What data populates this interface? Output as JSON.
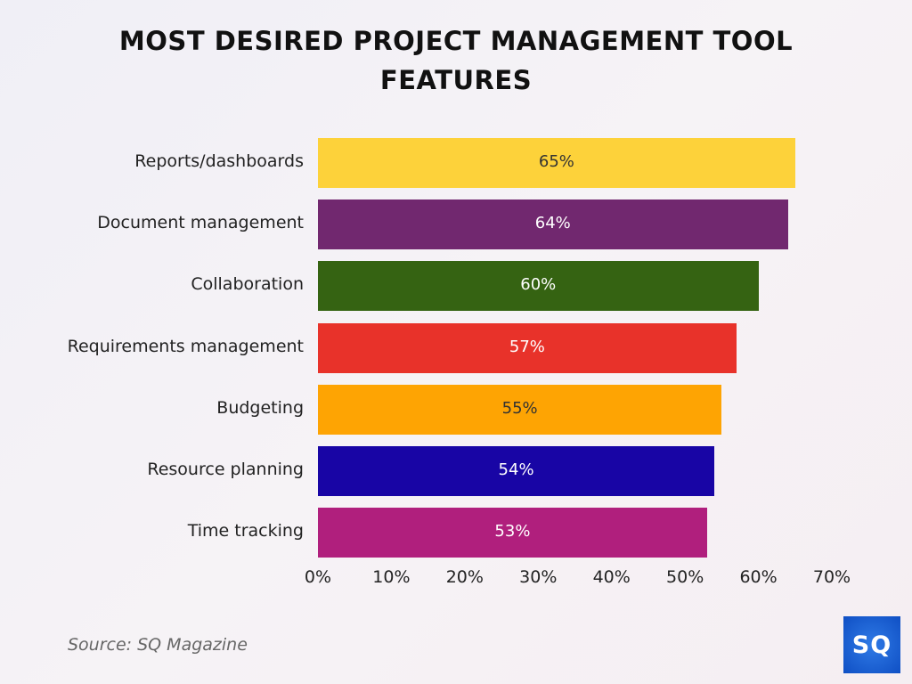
{
  "chart_data": {
    "type": "bar",
    "orientation": "horizontal",
    "title_line1": "MOST DESIRED PROJECT MANAGEMENT TOOL",
    "title_line2": "FEATURES",
    "categories": [
      "Reports/dashboards",
      "Document management",
      "Collaboration",
      "Requirements management",
      "Budgeting",
      "Resource planning",
      "Time tracking"
    ],
    "values": [
      65,
      64,
      60,
      57,
      55,
      54,
      53
    ],
    "data_labels": [
      "65%",
      "64%",
      "60%",
      "57%",
      "55%",
      "54%",
      "53%"
    ],
    "colors": [
      "#fdd23a",
      "#71286f",
      "#356312",
      "#e8322a",
      "#fea403",
      "#1805a5",
      "#b01f7d"
    ],
    "label_colors": [
      "#333333",
      "#ffffff",
      "#ffffff",
      "#ffffff",
      "#333333",
      "#ffffff",
      "#ffffff"
    ],
    "xlim": [
      0,
      70
    ],
    "x_ticks": [
      "0%",
      "10%",
      "20%",
      "30%",
      "40%",
      "50%",
      "60%",
      "70%"
    ],
    "grid": false,
    "legend": "none"
  },
  "source": "Source: SQ Magazine",
  "logo": {
    "text": "SQ",
    "color": "#1a5fd6"
  }
}
